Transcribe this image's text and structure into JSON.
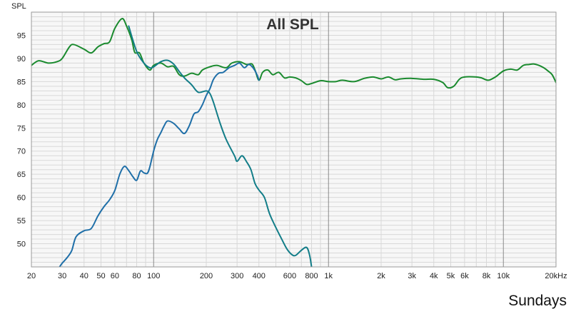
{
  "chart_data": {
    "type": "line",
    "title": "All SPL",
    "ylabel": "SPL",
    "caption": "Sundays",
    "x_scale": "log",
    "xlim": [
      20,
      20000
    ],
    "ylim": [
      45,
      100
    ],
    "grid": true,
    "x_ticks": [
      {
        "value": 20,
        "label": "20"
      },
      {
        "value": 30,
        "label": "30"
      },
      {
        "value": 40,
        "label": "40"
      },
      {
        "value": 50,
        "label": "50"
      },
      {
        "value": 60,
        "label": "60"
      },
      {
        "value": 80,
        "label": "80"
      },
      {
        "value": 100,
        "label": "100"
      },
      {
        "value": 200,
        "label": "200"
      },
      {
        "value": 300,
        "label": "300"
      },
      {
        "value": 400,
        "label": "400"
      },
      {
        "value": 600,
        "label": "600"
      },
      {
        "value": 800,
        "label": "800"
      },
      {
        "value": 1000,
        "label": "1k"
      },
      {
        "value": 2000,
        "label": "2k"
      },
      {
        "value": 3000,
        "label": "3k"
      },
      {
        "value": 4000,
        "label": "4k"
      },
      {
        "value": 5000,
        "label": "5k"
      },
      {
        "value": 6000,
        "label": "6k"
      },
      {
        "value": 8000,
        "label": "8k"
      },
      {
        "value": 10000,
        "label": "10k"
      },
      {
        "value": 20000,
        "label": "20kHz"
      }
    ],
    "y_ticks": [
      50,
      55,
      60,
      65,
      70,
      75,
      80,
      85,
      90,
      95
    ],
    "colors": {
      "grid_minor": "#d8d8d8",
      "grid_major": "#8a8a8a",
      "border": "#9a9a9a",
      "plot_bg": "#f7f7f7"
    },
    "series": [
      {
        "color": "#1a8a2e",
        "points": [
          [
            20,
            88.5
          ],
          [
            22,
            89.5
          ],
          [
            25,
            89
          ],
          [
            28,
            89.3
          ],
          [
            30,
            90
          ],
          [
            33,
            92.5
          ],
          [
            35,
            93
          ],
          [
            40,
            92
          ],
          [
            44,
            91.2
          ],
          [
            48,
            92.5
          ],
          [
            52,
            93.2
          ],
          [
            56,
            93.6
          ],
          [
            60,
            96.5
          ],
          [
            66,
            98.6
          ],
          [
            70,
            97
          ],
          [
            75,
            94
          ],
          [
            78,
            91.3
          ],
          [
            83,
            91.2
          ],
          [
            88,
            89
          ],
          [
            95,
            87.5
          ],
          [
            100,
            88.5
          ],
          [
            110,
            89
          ],
          [
            120,
            88.2
          ],
          [
            130,
            88.3
          ],
          [
            140,
            86.5
          ],
          [
            150,
            86.2
          ],
          [
            165,
            86.8
          ],
          [
            180,
            86.5
          ],
          [
            190,
            87.5
          ],
          [
            210,
            88.2
          ],
          [
            230,
            88.5
          ],
          [
            260,
            88
          ],
          [
            280,
            89
          ],
          [
            310,
            89.3
          ],
          [
            340,
            88.7
          ],
          [
            365,
            88.8
          ],
          [
            380,
            87.5
          ],
          [
            400,
            85.3
          ],
          [
            420,
            87
          ],
          [
            450,
            87.5
          ],
          [
            480,
            86.5
          ],
          [
            520,
            87
          ],
          [
            560,
            85.8
          ],
          [
            600,
            86
          ],
          [
            650,
            85.8
          ],
          [
            700,
            85.2
          ],
          [
            750,
            84.4
          ],
          [
            800,
            84.6
          ],
          [
            900,
            85.2
          ],
          [
            1000,
            85
          ],
          [
            1100,
            85
          ],
          [
            1200,
            85.3
          ],
          [
            1400,
            85
          ],
          [
            1600,
            85.7
          ],
          [
            1800,
            86
          ],
          [
            2000,
            85.6
          ],
          [
            2200,
            86
          ],
          [
            2400,
            85.4
          ],
          [
            2600,
            85.6
          ],
          [
            3000,
            85.7
          ],
          [
            3500,
            85.5
          ],
          [
            4000,
            85.5
          ],
          [
            4500,
            84.8
          ],
          [
            4800,
            83.7
          ],
          [
            5200,
            84
          ],
          [
            5600,
            85.5
          ],
          [
            6000,
            86
          ],
          [
            7000,
            86
          ],
          [
            7500,
            85.8
          ],
          [
            8200,
            85.3
          ],
          [
            9000,
            86
          ],
          [
            10000,
            87.3
          ],
          [
            11000,
            87.7
          ],
          [
            12000,
            87.5
          ],
          [
            13000,
            88.5
          ],
          [
            14000,
            88.7
          ],
          [
            15000,
            88.8
          ],
          [
            16000,
            88.5
          ],
          [
            17000,
            88
          ],
          [
            18000,
            87.3
          ],
          [
            19000,
            86.5
          ],
          [
            20000,
            84.8
          ]
        ]
      },
      {
        "color": "#1f6fa8",
        "points": [
          [
            29,
            45
          ],
          [
            30,
            45.8
          ],
          [
            32,
            47
          ],
          [
            34,
            48.5
          ],
          [
            36,
            51.5
          ],
          [
            40,
            52.8
          ],
          [
            44,
            53.3
          ],
          [
            48,
            56
          ],
          [
            52,
            58
          ],
          [
            56,
            59.5
          ],
          [
            60,
            61.5
          ],
          [
            64,
            65
          ],
          [
            68,
            66.7
          ],
          [
            72,
            65.8
          ],
          [
            76,
            64.5
          ],
          [
            80,
            63.7
          ],
          [
            84,
            65.7
          ],
          [
            88,
            65.3
          ],
          [
            92,
            65.2
          ],
          [
            95,
            66.5
          ],
          [
            100,
            70
          ],
          [
            105,
            72.5
          ],
          [
            110,
            74
          ],
          [
            115,
            75.5
          ],
          [
            120,
            76.5
          ],
          [
            130,
            76
          ],
          [
            140,
            74.8
          ],
          [
            150,
            73.8
          ],
          [
            160,
            75.5
          ],
          [
            170,
            78
          ],
          [
            180,
            78.5
          ],
          [
            190,
            80
          ],
          [
            200,
            82
          ],
          [
            210,
            83.5
          ],
          [
            220,
            85.5
          ],
          [
            235,
            86.8
          ],
          [
            250,
            87
          ],
          [
            270,
            88
          ],
          [
            290,
            88.5
          ],
          [
            310,
            89
          ],
          [
            330,
            88
          ],
          [
            350,
            88.7
          ],
          [
            370,
            88
          ],
          [
            390,
            86.5
          ],
          [
            400,
            85.3
          ]
        ]
      },
      {
        "color": "#127d88",
        "points": [
          [
            72,
            97
          ],
          [
            80,
            91.5
          ],
          [
            88,
            89
          ],
          [
            95,
            88
          ],
          [
            100,
            88.2
          ],
          [
            110,
            89.3
          ],
          [
            120,
            89.6
          ],
          [
            130,
            88.8
          ],
          [
            140,
            87.2
          ],
          [
            150,
            85.8
          ],
          [
            165,
            84.3
          ],
          [
            180,
            82.7
          ],
          [
            200,
            83
          ],
          [
            210,
            82.4
          ],
          [
            220,
            80.5
          ],
          [
            240,
            76
          ],
          [
            260,
            72.5
          ],
          [
            290,
            69
          ],
          [
            300,
            67.8
          ],
          [
            320,
            69
          ],
          [
            340,
            67.7
          ],
          [
            360,
            66
          ],
          [
            380,
            63
          ],
          [
            400,
            61.6
          ],
          [
            430,
            60
          ],
          [
            460,
            56.5
          ],
          [
            500,
            53.5
          ],
          [
            540,
            51
          ],
          [
            580,
            48.8
          ],
          [
            620,
            47.6
          ],
          [
            650,
            47.5
          ],
          [
            700,
            48.6
          ],
          [
            750,
            49.2
          ],
          [
            780,
            47.5
          ],
          [
            800,
            45
          ]
        ]
      }
    ]
  }
}
